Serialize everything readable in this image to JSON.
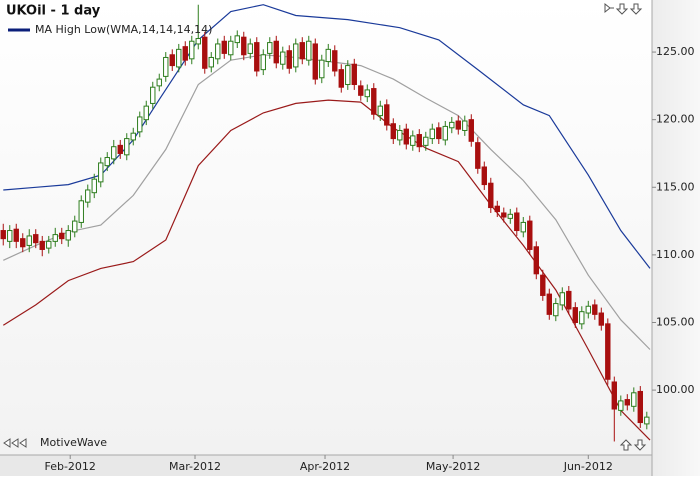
{
  "chart_data": {
    "type": "candlestick",
    "title": "UKOil - 1 day",
    "watermark": "MotiveWave",
    "up_color": "#2e7d1e",
    "down_color": "#a80f0f",
    "xlim": [
      -0.5,
      99.8
    ],
    "xticks": [
      {
        "value": 10.3,
        "label": "Feb-2012"
      },
      {
        "value": 29.5,
        "label": "Mar-2012"
      },
      {
        "value": 49.5,
        "label": "Apr-2012"
      },
      {
        "value": 69.2,
        "label": "May-2012"
      },
      {
        "value": 90,
        "label": "Jun-2012"
      }
    ],
    "ylim": [
      95.2,
      128.85
    ],
    "yticks": [
      {
        "value": 100,
        "label": "100.00"
      },
      {
        "value": 105,
        "label": "105.00"
      },
      {
        "value": 110,
        "label": "110.00"
      },
      {
        "value": 115,
        "label": "115.00"
      },
      {
        "value": 120,
        "label": "120.00"
      },
      {
        "value": 125,
        "label": "125.00"
      }
    ],
    "open": [
      111.8,
      111.0,
      111.9,
      111.2,
      110.7,
      111.5,
      111.0,
      110.5,
      111.0,
      111.6,
      111.1,
      111.7,
      112.4,
      113.9,
      114.6,
      115.4,
      116.6,
      117.1,
      118.1,
      117.4,
      118.5,
      119.1,
      120.0,
      121.2,
      122.5,
      123.2,
      124.8,
      123.9,
      125.4,
      124.5,
      125.6,
      126.1,
      123.9,
      124.5,
      125.8,
      124.8,
      125.7,
      126.1,
      124.9,
      125.7,
      123.7,
      124.9,
      125.8,
      124.1,
      125.1,
      123.9,
      125.7,
      124.4,
      125.6,
      123.1,
      124.3,
      125.1,
      123.7,
      122.6,
      124.1,
      122.5,
      121.7,
      122.3,
      120.3,
      121.1,
      119.7,
      118.5,
      119.3,
      118.1,
      118.9,
      118.1,
      118.6,
      119.4,
      118.5,
      119.4,
      119.9,
      119.2,
      120.0,
      118.3,
      116.5,
      115.3,
      113.6,
      113.1,
      112.7,
      113.1,
      111.7,
      112.5,
      110.6,
      108.5,
      107.1,
      105.5,
      106.3,
      107.3,
      106.1,
      104.9,
      105.7,
      106.3,
      105.7,
      104.9,
      100.6,
      98.5,
      99.3,
      98.8,
      99.9,
      97.5
    ],
    "high": [
      112.3,
      112.2,
      112.3,
      111.6,
      111.9,
      111.9,
      111.4,
      111.4,
      112.0,
      112.0,
      112.2,
      112.9,
      114.4,
      115.2,
      116.0,
      117.2,
      117.6,
      118.5,
      118.5,
      119.0,
      119.4,
      120.6,
      121.4,
      122.8,
      123.4,
      125.0,
      125.2,
      125.6,
      125.8,
      126.2,
      128.5,
      126.5,
      125.0,
      126.0,
      126.2,
      126.2,
      126.6,
      126.5,
      126.0,
      126.1,
      125.2,
      126.1,
      126.2,
      125.4,
      125.5,
      126.0,
      126.1,
      126.2,
      126.0,
      124.8,
      125.6,
      125.5,
      124.1,
      124.4,
      124.5,
      122.9,
      122.6,
      122.7,
      121.4,
      121.5,
      120.1,
      119.6,
      119.7,
      119.2,
      119.3,
      119.1,
      119.7,
      119.8,
      119.9,
      120.2,
      120.3,
      120.3,
      120.4,
      118.7,
      116.9,
      115.7,
      114.0,
      113.5,
      113.4,
      113.5,
      112.8,
      112.9,
      111.0,
      108.9,
      107.5,
      106.8,
      107.6,
      107.7,
      106.5,
      106.2,
      106.6,
      106.7,
      106.1,
      105.3,
      101.0,
      99.6,
      99.7,
      100.2,
      100.3,
      98.4
    ],
    "low": [
      110.7,
      110.5,
      110.5,
      110.2,
      110.2,
      110.5,
      109.9,
      110.1,
      110.6,
      110.8,
      110.6,
      111.3,
      112.0,
      113.5,
      114.2,
      115.0,
      116.2,
      116.7,
      117.1,
      117.0,
      118.1,
      118.7,
      119.6,
      120.8,
      122.1,
      122.8,
      123.6,
      123.5,
      124.0,
      124.1,
      125.2,
      123.4,
      123.5,
      124.1,
      124.5,
      124.4,
      125.3,
      124.4,
      124.5,
      123.2,
      123.3,
      124.5,
      123.8,
      123.7,
      123.4,
      123.5,
      124.1,
      124.0,
      122.6,
      122.7,
      123.9,
      123.2,
      122.0,
      122.2,
      122.2,
      121.4,
      121.3,
      120.0,
      119.9,
      119.2,
      118.2,
      118.1,
      117.8,
      117.7,
      117.6,
      117.7,
      118.2,
      118.2,
      118.1,
      119.0,
      118.9,
      118.8,
      118.0,
      116.0,
      114.8,
      113.1,
      112.8,
      112.4,
      112.3,
      111.4,
      111.3,
      110.0,
      108.2,
      106.6,
      105.2,
      105.1,
      105.9,
      105.6,
      104.6,
      104.5,
      105.3,
      105.2,
      104.4,
      100.4,
      96.2,
      98.1,
      98.5,
      98.4,
      97.2,
      97.1
    ],
    "close": [
      111.2,
      111.8,
      111.0,
      110.6,
      111.4,
      110.9,
      110.4,
      111.0,
      111.5,
      111.2,
      111.8,
      112.5,
      114.0,
      114.8,
      115.6,
      116.8,
      117.2,
      118.0,
      117.5,
      118.6,
      119.0,
      120.2,
      121.0,
      122.4,
      123.0,
      124.6,
      124.0,
      125.2,
      124.4,
      125.8,
      126.0,
      123.8,
      124.6,
      125.6,
      124.9,
      125.8,
      126.2,
      124.8,
      125.6,
      123.6,
      124.8,
      125.7,
      124.2,
      125.0,
      123.8,
      125.6,
      124.5,
      125.8,
      123.0,
      124.4,
      125.2,
      123.6,
      122.4,
      124.0,
      122.6,
      121.8,
      122.2,
      120.4,
      121.0,
      119.6,
      118.6,
      119.2,
      118.2,
      118.8,
      118.0,
      118.7,
      119.3,
      118.6,
      119.5,
      119.8,
      119.3,
      119.9,
      118.4,
      116.4,
      115.2,
      113.5,
      113.2,
      112.8,
      113.0,
      111.8,
      112.4,
      110.4,
      108.6,
      107.0,
      105.6,
      106.4,
      107.2,
      106.0,
      105.0,
      105.8,
      106.2,
      105.6,
      104.8,
      100.8,
      98.6,
      99.2,
      98.9,
      99.8,
      97.6,
      98.0
    ],
    "indicator": {
      "name": "MA High Low(WMA,14,14,14,14)",
      "color": "#0b1f7a",
      "series": [
        {
          "color": "#1a3a9a",
          "x": [
            0,
            5,
            10,
            15,
            20,
            24,
            30,
            35,
            40,
            45,
            53,
            61,
            67,
            73,
            80,
            84,
            90,
            95,
            99.5
          ],
          "values": [
            114.8,
            115.0,
            115.2,
            115.9,
            118.5,
            121.5,
            125.9,
            128.0,
            128.5,
            127.7,
            127.4,
            126.8,
            125.9,
            123.7,
            121.1,
            120.3,
            115.9,
            111.8,
            109.0
          ]
        },
        {
          "color": "#a0a0a0",
          "x": [
            0,
            5,
            10,
            15,
            20,
            25,
            30,
            35,
            40,
            45,
            50,
            55,
            60,
            65,
            70,
            75,
            80,
            85,
            90,
            95,
            99.5
          ],
          "values": [
            109.6,
            110.7,
            111.7,
            112.2,
            114.4,
            117.8,
            122.6,
            124.4,
            124.8,
            124.6,
            124.3,
            124.0,
            123.0,
            121.6,
            120.3,
            117.8,
            115.5,
            112.6,
            108.5,
            105.2,
            103.0
          ]
        },
        {
          "color": "#9a1a1a",
          "x": [
            0,
            5,
            10,
            15,
            20,
            25,
            30,
            35,
            40,
            45,
            50,
            55,
            60,
            65,
            70,
            75,
            80,
            85,
            90,
            95,
            99.5
          ],
          "values": [
            104.8,
            106.3,
            108.1,
            109.0,
            109.5,
            111.1,
            116.6,
            119.2,
            120.5,
            121.2,
            121.45,
            121.3,
            119.4,
            117.9,
            116.9,
            113.7,
            110.7,
            107.4,
            103.0,
            98.5,
            96.3
          ]
        }
      ]
    }
  }
}
